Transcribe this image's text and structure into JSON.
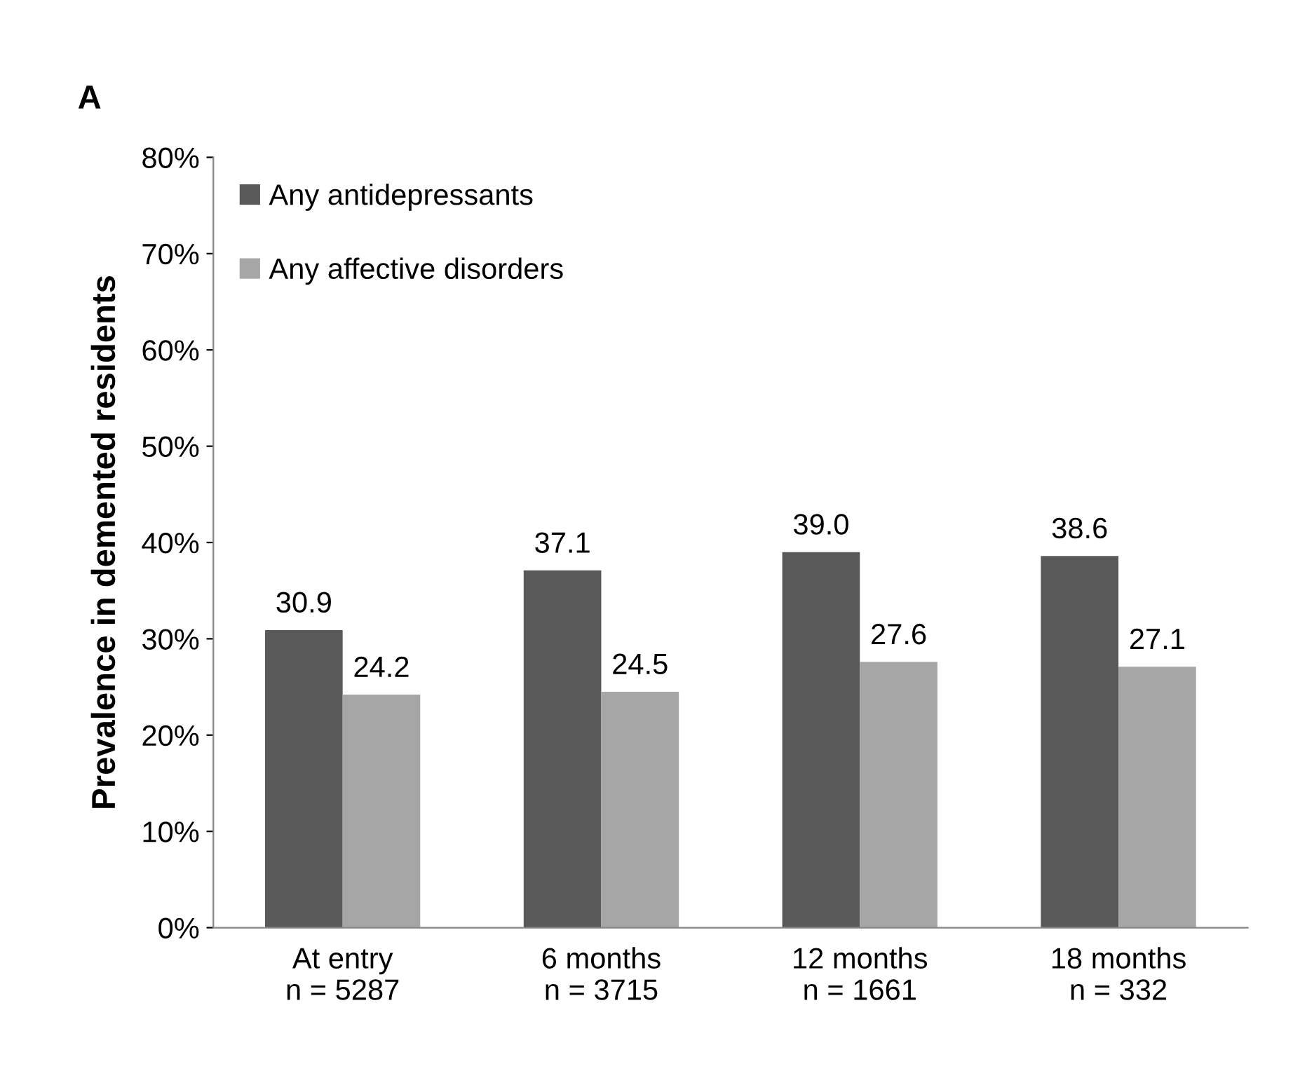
{
  "chart_data": {
    "type": "bar",
    "title": "A",
    "ylabel": "Prevalence in demented residents",
    "categories": [
      "At entry\nn = 5287",
      "6 months\nn = 3715",
      "12 months\nn = 1661",
      "18 months\nn = 332"
    ],
    "series": [
      {
        "name": "Any antidepressants",
        "color": "#595959",
        "values": [
          30.9,
          37.1,
          39.0,
          38.6
        ],
        "value_labels": [
          "30.9",
          "37.1",
          "39.0",
          "38.6"
        ]
      },
      {
        "name": "Any affective disorders",
        "color": "#a6a6a6",
        "values": [
          24.2,
          24.5,
          27.6,
          27.1
        ],
        "value_labels": [
          "24.2",
          "24.5",
          "27.6",
          "27.1"
        ]
      }
    ],
    "ylim": [
      0,
      80
    ],
    "yticks": [
      {
        "value": 0,
        "label": "0%"
      },
      {
        "value": 10,
        "label": "10%"
      },
      {
        "value": 20,
        "label": "20%"
      },
      {
        "value": 30,
        "label": "30%"
      },
      {
        "value": 40,
        "label": "40%"
      },
      {
        "value": 50,
        "label": "50%"
      },
      {
        "value": 60,
        "label": "60%"
      },
      {
        "value": 70,
        "label": "70%"
      },
      {
        "value": 80,
        "label": "80%"
      }
    ],
    "grid": false,
    "legend": "top left"
  }
}
